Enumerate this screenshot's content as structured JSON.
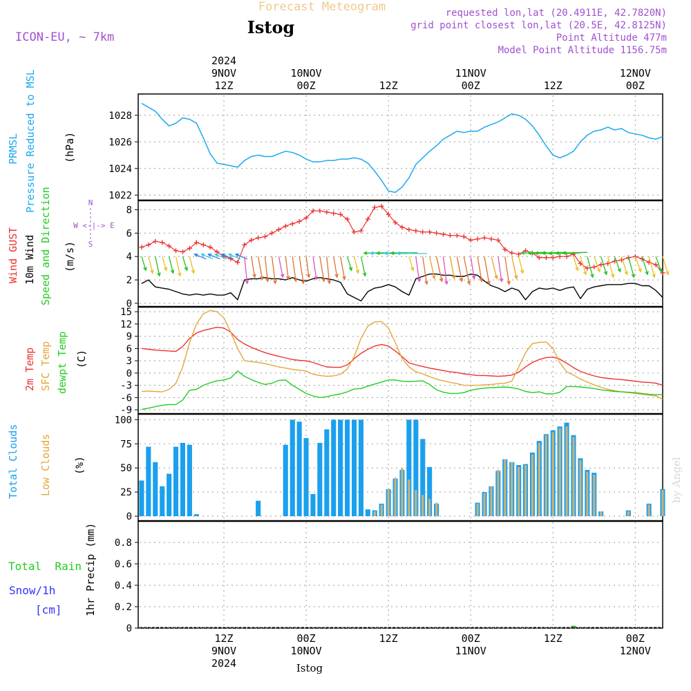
{
  "header": {
    "subtitle": "Forecast Meteogram",
    "title": "Istog",
    "model": "ICON-EU,  ~ 7km",
    "requested": "requested lon,lat (20.4911E, 42.7820N)",
    "grid_point": "grid point closest lon,lat (20.5E, 42.8125N)",
    "point_altitude": "Point Altitude 477m",
    "model_altitude": "Model Point Altitude 1156.75m",
    "footer": "Istog",
    "watermark": "by Angel"
  },
  "time_axis": {
    "year": "2024",
    "ticks": [
      {
        "hour": 12,
        "time": "12Z",
        "day": "9NOV",
        "year": "2024"
      },
      {
        "hour": 24,
        "time": "00Z",
        "day": "10NOV",
        "year": ""
      },
      {
        "hour": 36,
        "time": "12Z",
        "day": "",
        "year": ""
      },
      {
        "hour": 48,
        "time": "00Z",
        "day": "11NOV",
        "year": ""
      },
      {
        "hour": 60,
        "time": "12Z",
        "day": "",
        "year": ""
      },
      {
        "hour": 72,
        "time": "00Z",
        "day": "12NOV",
        "year": ""
      }
    ]
  },
  "labels": {
    "prmsl": "PRMSL",
    "pressure": "Pressure Reduced to MSL",
    "hpa": "(hPa)",
    "gust": "Wind GUST",
    "wind10": "10m Wind",
    "speed_dir": "Speed and Direction",
    "ms": "(m/s)",
    "compass_n": "N",
    "compass_s": "S",
    "compass_we": "W <-|-> E",
    "temp2m": "2m Temp",
    "sfc": "SFC Temp",
    "dewpt": "dewpt Temp",
    "c": "(C)",
    "total_clouds": "Total Clouds",
    "low_clouds": "Low Clouds",
    "pct": "(%)",
    "total_rain": "Total  Rain",
    "snow": "Snow/1h",
    "cm": "[cm]",
    "precip": "1hr Precip (mm)"
  },
  "colors": {
    "pressure": "#1aa8f0",
    "gust": "#ee3030",
    "wind": "#000000",
    "temp": "#ee3030",
    "sfc": "#e5a53a",
    "dew": "#22cc22",
    "total_cloud": "#1aa0ee",
    "low_cloud": "#c9b27a",
    "rain": "#22aa22",
    "subtitle": "#f0c890",
    "info": "#a050d0",
    "snow": "#3333ff"
  },
  "chart_data": [
    {
      "type": "line",
      "title": "PRMSL Pressure Reduced to MSL",
      "ylabel": "(hPa)",
      "ylim": [
        1021.6,
        1029.6
      ],
      "yticks": [
        1022,
        1024,
        1026,
        1028
      ],
      "x": [
        0,
        1,
        2,
        3,
        4,
        5,
        6,
        7,
        8,
        9,
        10,
        11,
        12,
        13,
        14,
        15,
        16,
        17,
        18,
        19,
        20,
        21,
        22,
        23,
        24,
        25,
        26,
        27,
        28,
        29,
        30,
        31,
        32,
        33,
        34,
        35,
        36,
        37,
        38,
        39,
        40,
        41,
        42,
        43,
        44,
        45,
        46,
        47,
        48,
        49,
        50,
        51,
        52,
        53,
        54,
        55,
        56,
        57,
        58,
        59,
        60,
        61,
        62,
        63,
        64,
        65,
        66,
        67,
        68,
        69,
        70,
        71,
        72,
        73,
        74,
        75,
        76
      ],
      "values": [
        1028.9,
        1028.6,
        1028.3,
        1027.7,
        1027.2,
        1027.4,
        1027.8,
        1027.7,
        1027.4,
        1026.3,
        1025.1,
        1024.4,
        1024.3,
        1024.2,
        1024.1,
        1024.6,
        1024.9,
        1025.0,
        1024.9,
        1024.9,
        1025.1,
        1025.3,
        1025.2,
        1025.0,
        1024.7,
        1024.5,
        1024.5,
        1024.6,
        1024.6,
        1024.7,
        1024.7,
        1024.8,
        1024.7,
        1024.4,
        1023.8,
        1023.1,
        1022.3,
        1022.2,
        1022.6,
        1023.3,
        1024.3,
        1024.8,
        1025.3,
        1025.7,
        1026.2,
        1026.5,
        1026.8,
        1026.7,
        1026.8,
        1026.8,
        1027.1,
        1027.3,
        1027.5,
        1027.8,
        1028.1,
        1028.0,
        1027.7,
        1027.2,
        1026.5,
        1025.7,
        1025.0,
        1024.8,
        1025.0,
        1025.3,
        1026.0,
        1026.5,
        1026.8,
        1026.9,
        1027.1,
        1026.9,
        1027.0,
        1026.7,
        1026.6,
        1026.5,
        1026.3,
        1026.2,
        1026.4
      ]
    },
    {
      "type": "line",
      "title": "Wind GUST / 10m Wind Speed and Direction",
      "ylabel": "(m/s)",
      "ylim": [
        -0.3,
        8.8
      ],
      "yticks": [
        0,
        2,
        4,
        6,
        8
      ],
      "x": [
        0,
        1,
        2,
        3,
        4,
        5,
        6,
        7,
        8,
        9,
        10,
        11,
        12,
        13,
        14,
        15,
        16,
        17,
        18,
        19,
        20,
        21,
        22,
        23,
        24,
        25,
        26,
        27,
        28,
        29,
        30,
        31,
        32,
        33,
        34,
        35,
        36,
        37,
        38,
        39,
        40,
        41,
        42,
        43,
        44,
        45,
        46,
        47,
        48,
        49,
        50,
        51,
        52,
        53,
        54,
        55,
        56,
        57,
        58,
        59,
        60,
        61,
        62,
        63,
        64,
        65,
        66,
        67,
        68,
        69,
        70,
        71,
        72,
        73,
        74,
        75,
        76
      ],
      "series": [
        {
          "name": "Wind GUST",
          "values": [
            4.8,
            5.0,
            5.3,
            5.2,
            4.9,
            4.5,
            4.4,
            4.7,
            5.2,
            5.0,
            4.8,
            4.4,
            4.0,
            3.8,
            3.5,
            5.0,
            5.4,
            5.6,
            5.7,
            6.0,
            6.3,
            6.6,
            6.8,
            7.0,
            7.3,
            7.9,
            7.9,
            7.8,
            7.7,
            7.6,
            7.2,
            6.1,
            6.2,
            7.2,
            8.2,
            8.3,
            7.6,
            6.9,
            6.5,
            6.3,
            6.2,
            6.1,
            6.1,
            6.0,
            5.9,
            5.8,
            5.8,
            5.7,
            5.4,
            5.5,
            5.6,
            5.5,
            5.4,
            4.6,
            4.3,
            4.2,
            4.5,
            4.3,
            3.9,
            3.9,
            3.9,
            4.0,
            4.0,
            4.2,
            3.4,
            3.0,
            3.1,
            3.3,
            3.4,
            3.6,
            3.7,
            3.9,
            4.0,
            3.8,
            3.5,
            3.3,
            2.6
          ]
        },
        {
          "name": "10m Wind",
          "values": [
            1.7,
            2.0,
            1.4,
            1.3,
            1.2,
            1.0,
            0.8,
            0.7,
            0.8,
            0.7,
            0.8,
            0.7,
            0.7,
            0.9,
            0.3,
            2.0,
            2.1,
            2.1,
            2.2,
            2.1,
            2.1,
            2.0,
            2.2,
            2.0,
            1.9,
            2.1,
            2.2,
            2.1,
            2.0,
            1.8,
            0.8,
            0.5,
            0.2,
            1.0,
            1.3,
            1.4,
            1.6,
            1.4,
            1.0,
            0.7,
            2.1,
            2.3,
            2.5,
            2.5,
            2.4,
            2.4,
            2.3,
            2.3,
            2.5,
            2.4,
            1.9,
            1.5,
            1.3,
            1.0,
            1.3,
            1.1,
            0.3,
            1.0,
            1.3,
            1.2,
            1.3,
            1.1,
            1.3,
            1.4,
            0.4,
            1.2,
            1.4,
            1.5,
            1.6,
            1.6,
            1.6,
            1.7,
            1.7,
            1.5,
            1.5,
            1.1,
            0.5
          ]
        }
      ]
    },
    {
      "type": "line",
      "title": "2m Temp / SFC Temp / dewpt Temp",
      "ylabel": "(C)",
      "ylim": [
        -10,
        16.2
      ],
      "yticks": [
        -9,
        -6,
        -3,
        0,
        3,
        6,
        9,
        12,
        15
      ],
      "x": [
        0,
        1,
        2,
        3,
        4,
        5,
        6,
        7,
        8,
        9,
        10,
        11,
        12,
        13,
        14,
        15,
        16,
        17,
        18,
        19,
        20,
        21,
        22,
        23,
        24,
        25,
        26,
        27,
        28,
        29,
        30,
        31,
        32,
        33,
        34,
        35,
        36,
        37,
        38,
        39,
        40,
        41,
        42,
        43,
        44,
        45,
        46,
        47,
        48,
        49,
        50,
        51,
        52,
        53,
        54,
        55,
        56,
        57,
        58,
        59,
        60,
        61,
        62,
        63,
        64,
        65,
        66,
        67,
        68,
        69,
        70,
        71,
        72,
        73,
        74,
        75,
        76
      ],
      "series": [
        {
          "name": "2m Temp",
          "values": [
            6.0,
            5.8,
            5.6,
            5.5,
            5.4,
            5.3,
            6.5,
            8.5,
            9.8,
            10.4,
            10.8,
            11.2,
            11.0,
            10.0,
            8.2,
            7.1,
            6.3,
            5.6,
            5.0,
            4.5,
            4.1,
            3.7,
            3.3,
            3.1,
            3.0,
            2.6,
            2.0,
            1.5,
            1.4,
            1.4,
            2.0,
            3.5,
            4.8,
            5.8,
            6.6,
            7.0,
            6.6,
            5.4,
            4.0,
            2.5,
            2.0,
            1.6,
            1.2,
            0.9,
            0.6,
            0.3,
            0.1,
            -0.2,
            -0.4,
            -0.6,
            -0.6,
            -0.7,
            -0.8,
            -0.7,
            -0.5,
            0.2,
            1.5,
            2.6,
            3.3,
            3.8,
            3.9,
            3.4,
            2.4,
            1.3,
            0.4,
            -0.2,
            -0.7,
            -1.1,
            -1.3,
            -1.5,
            -1.6,
            -1.8,
            -2.0,
            -2.2,
            -2.3,
            -2.5,
            -3.0
          ]
        },
        {
          "name": "SFC Temp",
          "values": [
            -4.5,
            -4.4,
            -4.5,
            -4.6,
            -4.0,
            -2.5,
            1.5,
            7.5,
            12.0,
            14.5,
            15.3,
            15.0,
            13.5,
            10.0,
            6.0,
            3.0,
            2.8,
            2.6,
            2.3,
            1.9,
            1.5,
            1.2,
            0.9,
            0.7,
            0.5,
            -0.3,
            -0.6,
            -0.8,
            -0.7,
            -0.3,
            1.0,
            4.0,
            8.5,
            11.5,
            12.5,
            12.6,
            11.0,
            7.5,
            3.5,
            1.5,
            0.3,
            -0.2,
            -0.9,
            -1.5,
            -1.9,
            -2.3,
            -2.6,
            -3.0,
            -3.0,
            -3.0,
            -2.9,
            -2.8,
            -2.6,
            -2.5,
            -2.0,
            1.5,
            5.0,
            7.2,
            7.5,
            7.6,
            6.0,
            2.5,
            0.3,
            -0.5,
            -1.5,
            -2.2,
            -2.9,
            -3.5,
            -4.0,
            -4.3,
            -4.6,
            -4.8,
            -5.0,
            -5.2,
            -5.4,
            -5.6,
            -6.4
          ]
        },
        {
          "name": "dewpt Temp",
          "values": [
            -8.9,
            -8.6,
            -8.2,
            -7.9,
            -7.7,
            -7.7,
            -6.6,
            -4.2,
            -4.0,
            -3.0,
            -2.4,
            -1.9,
            -1.7,
            -1.2,
            0.5,
            -0.8,
            -1.6,
            -2.3,
            -2.8,
            -2.5,
            -1.8,
            -1.7,
            -3.0,
            -4.0,
            -5.0,
            -5.6,
            -6.0,
            -5.8,
            -5.4,
            -5.1,
            -4.6,
            -3.9,
            -3.8,
            -3.2,
            -2.7,
            -2.2,
            -1.7,
            -1.7,
            -2.0,
            -2.1,
            -2.0,
            -1.9,
            -2.8,
            -4.1,
            -4.7,
            -5.0,
            -5.0,
            -4.8,
            -4.2,
            -3.9,
            -3.7,
            -3.6,
            -3.5,
            -3.4,
            -3.6,
            -3.9,
            -4.5,
            -4.8,
            -4.6,
            -5.1,
            -5.1,
            -4.7,
            -3.3,
            -3.3,
            -3.4,
            -3.6,
            -3.8,
            -4.1,
            -4.3,
            -4.5,
            -4.6,
            -4.7,
            -4.8,
            -5.0,
            -5.2,
            -5.3,
            -5.3
          ]
        }
      ]
    },
    {
      "type": "bar",
      "title": "Total Clouds / Low Clouds",
      "ylabel": "(%)",
      "ylim": [
        -5,
        106
      ],
      "yticks": [
        0,
        25,
        50,
        75,
        100
      ],
      "x": [
        0,
        1,
        2,
        3,
        4,
        5,
        6,
        7,
        8,
        9,
        10,
        11,
        12,
        13,
        14,
        15,
        16,
        17,
        18,
        19,
        20,
        21,
        22,
        23,
        24,
        25,
        26,
        27,
        28,
        29,
        30,
        31,
        32,
        33,
        34,
        35,
        36,
        37,
        38,
        39,
        40,
        41,
        42,
        43,
        44,
        45,
        46,
        47,
        48,
        49,
        50,
        51,
        52,
        53,
        54,
        55,
        56,
        57,
        58,
        59,
        60,
        61,
        62,
        63,
        64,
        65,
        66,
        67,
        68,
        69,
        70,
        71,
        72,
        73,
        74,
        75,
        76
      ],
      "series": [
        {
          "name": "Total Clouds",
          "values": [
            37,
            72,
            56,
            31,
            44,
            72,
            76,
            74,
            2,
            0,
            0,
            0,
            0,
            0,
            0,
            0,
            0,
            16,
            0,
            0,
            0,
            74,
            100,
            98,
            81,
            23,
            76,
            90,
            100,
            100,
            100,
            100,
            100,
            7,
            6,
            13,
            28,
            39,
            48,
            100,
            100,
            80,
            51,
            13,
            0,
            0,
            0,
            0,
            0,
            14,
            25,
            31,
            47,
            59,
            56,
            53,
            54,
            66,
            78,
            85,
            89,
            93,
            97,
            84,
            60,
            48,
            45,
            5,
            0,
            0,
            0,
            6,
            0,
            0,
            13,
            0,
            28
          ]
        },
        {
          "name": "Low Clouds",
          "values": [
            0,
            0,
            0,
            0,
            0,
            0,
            0,
            0,
            0,
            0,
            0,
            0,
            0,
            0,
            0,
            0,
            0,
            0,
            0,
            0,
            0,
            0,
            0,
            0,
            0,
            0,
            0,
            0,
            0,
            0,
            0,
            0,
            0,
            0,
            5,
            12,
            28,
            40,
            50,
            38,
            27,
            22,
            18,
            14,
            0,
            0,
            0,
            0,
            0,
            13,
            24,
            31,
            48,
            59,
            56,
            51,
            53,
            64,
            76,
            84,
            87,
            91,
            93,
            82,
            58,
            46,
            43,
            5,
            0,
            0,
            0,
            5,
            0,
            0,
            12,
            0,
            27
          ]
        }
      ]
    },
    {
      "type": "bar",
      "title": "1hr Precip (mm)",
      "ylabel": "1hr Precip (mm)",
      "ylim": [
        0,
        1.0
      ],
      "yticks": [
        0,
        0.2,
        0.4,
        0.6,
        0.8
      ],
      "x": [
        63
      ],
      "series": [
        {
          "name": "Total Rain",
          "values": [
            0.015
          ]
        },
        {
          "name": "Snow/1h",
          "values": [
            0
          ]
        }
      ]
    }
  ]
}
